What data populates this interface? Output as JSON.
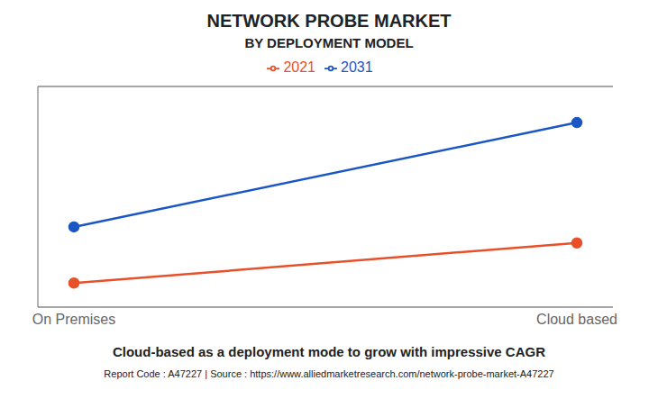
{
  "chart_data": {
    "type": "line",
    "title": "NETWORK PROBE MARKET",
    "subtitle": "BY DEPLOYMENT MODEL",
    "categories": [
      "On Premises",
      "Cloud based"
    ],
    "series": [
      {
        "name": "2021",
        "color": "#e8502a",
        "values": [
          1.2,
          3.2
        ]
      },
      {
        "name": "2031",
        "color": "#1a56c4",
        "values": [
          4.0,
          9.2
        ]
      }
    ],
    "ylim": [
      0,
      11
    ],
    "yticks": [
      0,
      2,
      4,
      6,
      8,
      10
    ],
    "grid": true,
    "legend": "top",
    "marker": "circle",
    "tick_labels": "x",
    "annotations": [
      "Cloud-based as a deployment mode to grow with impressive CAGR",
      "Report Code : A47227  |  Source : https://www.alliedmarketresearch.com/network-probe-market-A47227"
    ]
  }
}
